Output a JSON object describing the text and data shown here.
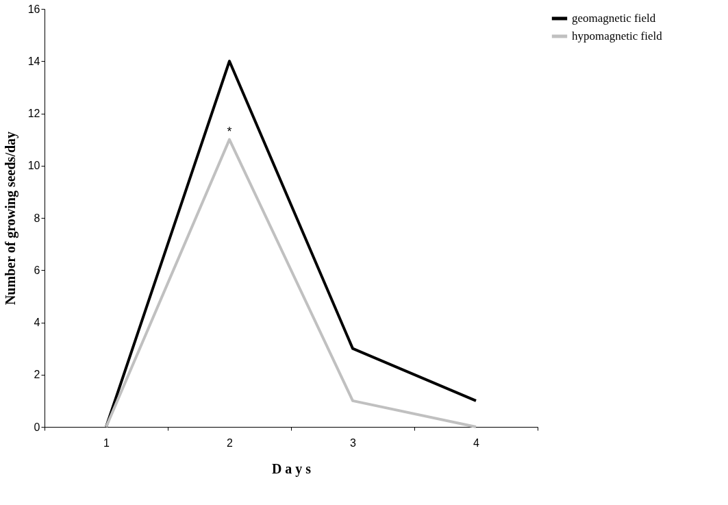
{
  "chart_data": {
    "type": "line",
    "xlabel": "D a y s",
    "ylabel": "Number of growing seeds/day",
    "categories": [
      "1",
      "2",
      "3",
      "4"
    ],
    "series": [
      {
        "name": "geomagnetic field",
        "color": "#000000",
        "values": [
          0,
          14,
          3,
          1
        ]
      },
      {
        "name": "hypomagnetic field",
        "color": "#c0c0c0",
        "values": [
          0,
          11,
          1,
          0
        ]
      }
    ],
    "ylim": [
      0,
      16
    ],
    "yticks": [
      0,
      2,
      4,
      6,
      8,
      10,
      12,
      14,
      16
    ],
    "grid": false,
    "legend": "right",
    "marker": "none",
    "line_style": "solid",
    "annotations": [
      {
        "text": "*",
        "x": "2",
        "y": 11
      }
    ]
  }
}
